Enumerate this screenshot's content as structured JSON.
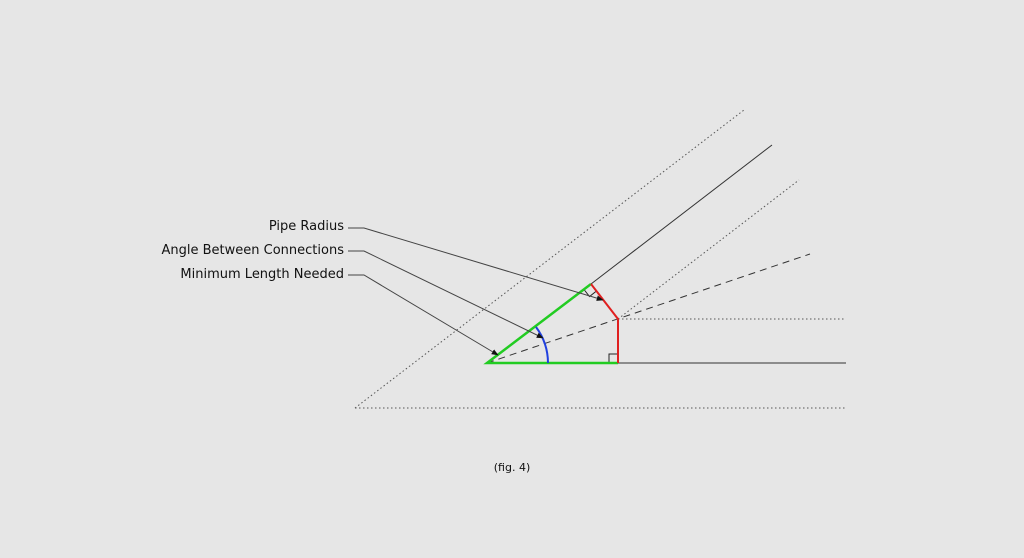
{
  "labels": {
    "pipe_radius": "Pipe Radius",
    "angle_between": "Angle Between Connections",
    "minimum_length": "Minimum Length Needed"
  },
  "caption": "(fig. 4)",
  "colors": {
    "background": "#e6e6e6",
    "minimum_length": "#22cc22",
    "pipe_radius": "#e02020",
    "angle": "#2040e0",
    "lines": "#333333"
  }
}
